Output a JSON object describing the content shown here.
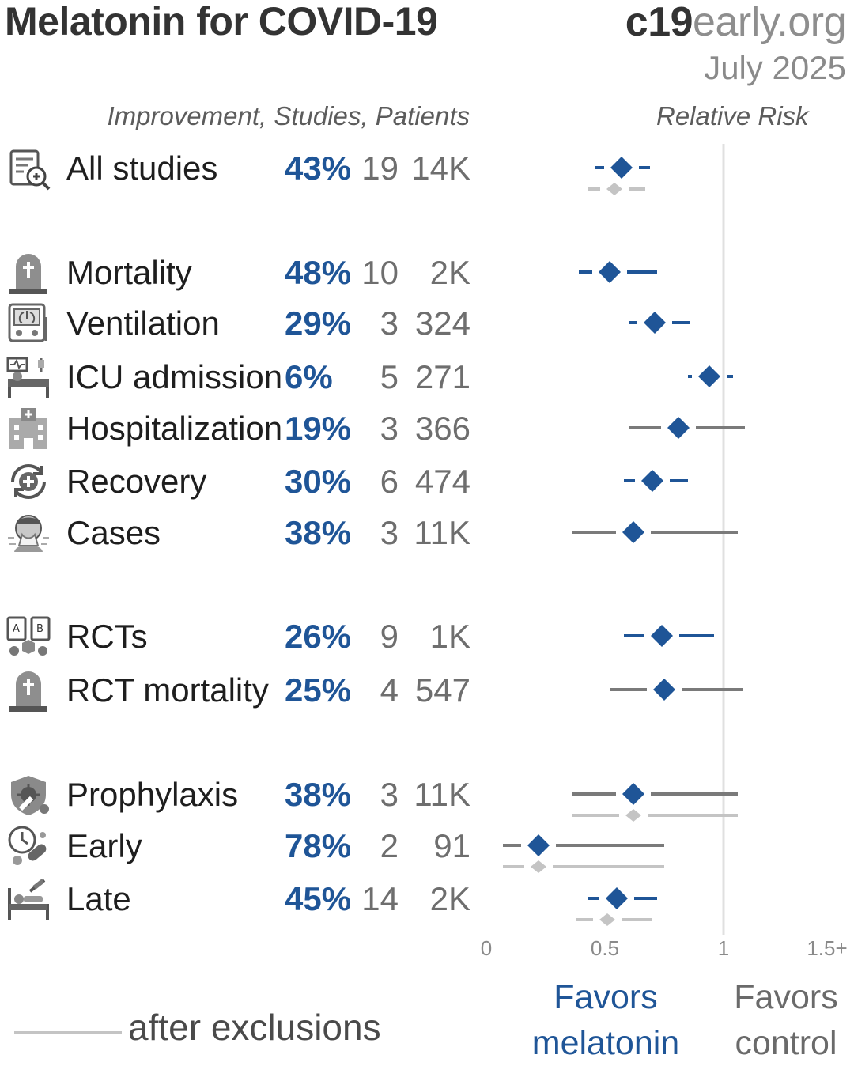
{
  "header": {
    "title": "Melatonin for COVID-19",
    "brand_main": "c19",
    "brand_light": "early.org",
    "date": "July 2025",
    "col_left": "Improvement, Studies, Patients",
    "col_right": "Relative Risk"
  },
  "rows": [
    {
      "label": "All studies",
      "improvement": "43%",
      "studies": "19",
      "patients": "14K",
      "icon": "study-magnifier-icon"
    },
    {
      "label": "Mortality",
      "improvement": "48%",
      "studies": "10",
      "patients": "2K",
      "icon": "gravestone-icon"
    },
    {
      "label": "Ventilation",
      "improvement": "29%",
      "studies": "3",
      "patients": "324",
      "icon": "ventilator-icon"
    },
    {
      "label": "ICU admission",
      "improvement": "6%",
      "studies": "5",
      "patients": "271",
      "icon": "icu-bed-icon"
    },
    {
      "label": "Hospitalization",
      "improvement": "19%",
      "studies": "3",
      "patients": "366",
      "icon": "hospital-icon"
    },
    {
      "label": "Recovery",
      "improvement": "30%",
      "studies": "6",
      "patients": "474",
      "icon": "recovery-cross-icon"
    },
    {
      "label": "Cases",
      "improvement": "38%",
      "studies": "3",
      "patients": "11K",
      "icon": "sneezing-person-icon"
    },
    {
      "label": "RCTs",
      "improvement": "26%",
      "studies": "9",
      "patients": "1K",
      "icon": "randomized-trial-icon"
    },
    {
      "label": "RCT mortality",
      "improvement": "25%",
      "studies": "4",
      "patients": "547",
      "icon": "gravestone-icon"
    },
    {
      "label": "Prophylaxis",
      "improvement": "38%",
      "studies": "3",
      "patients": "11K",
      "icon": "shield-virus-icon"
    },
    {
      "label": "Early",
      "improvement": "78%",
      "studies": "2",
      "patients": "91",
      "icon": "clock-pill-icon"
    },
    {
      "label": "Late",
      "improvement": "45%",
      "studies": "14",
      "patients": "2K",
      "icon": "hospital-bed-syringe-icon"
    }
  ],
  "chart_data": {
    "type": "forest",
    "title": "Melatonin for COVID-19",
    "xlabel": "Relative Risk",
    "xlim": [
      0,
      1.5
    ],
    "xticks": [
      "0",
      "0.5",
      "1",
      "1.5+"
    ],
    "reference_line": 1,
    "favors_treatment": "Favors melatonin",
    "favors_control": "Favors control",
    "legend": "after exclusions",
    "series": [
      {
        "name": "all studies",
        "points": [
          {
            "label": "All studies",
            "rr": 0.57,
            "ci": [
              0.46,
              0.69
            ]
          },
          {
            "label": "Mortality",
            "rr": 0.52,
            "ci": [
              0.39,
              0.72
            ]
          },
          {
            "label": "Ventilation",
            "rr": 0.71,
            "ci": [
              0.6,
              0.86
            ]
          },
          {
            "label": "ICU admission",
            "rr": 0.94,
            "ci": [
              0.85,
              1.04
            ]
          },
          {
            "label": "Hospitalization",
            "rr": 0.81,
            "ci": [
              0.6,
              1.09
            ]
          },
          {
            "label": "Recovery",
            "rr": 0.7,
            "ci": [
              0.58,
              0.85
            ]
          },
          {
            "label": "Cases",
            "rr": 0.62,
            "ci": [
              0.36,
              1.06
            ]
          },
          {
            "label": "RCTs",
            "rr": 0.74,
            "ci": [
              0.58,
              0.96
            ]
          },
          {
            "label": "RCT mortality",
            "rr": 0.75,
            "ci": [
              0.52,
              1.08
            ]
          },
          {
            "label": "Prophylaxis",
            "rr": 0.62,
            "ci": [
              0.36,
              1.06
            ]
          },
          {
            "label": "Early",
            "rr": 0.22,
            "ci": [
              0.07,
              0.75
            ]
          },
          {
            "label": "Late",
            "rr": 0.55,
            "ci": [
              0.43,
              0.72
            ]
          }
        ]
      },
      {
        "name": "after exclusions",
        "points": [
          {
            "label": "All studies",
            "rr": 0.54,
            "ci": [
              0.43,
              0.67
            ]
          },
          {
            "label": "Prophylaxis",
            "rr": 0.62,
            "ci": [
              0.36,
              1.06
            ]
          },
          {
            "label": "Early",
            "rr": 0.22,
            "ci": [
              0.07,
              0.75
            ]
          },
          {
            "label": "Late",
            "rr": 0.51,
            "ci": [
              0.38,
              0.7
            ]
          }
        ]
      }
    ]
  },
  "colors": {
    "accent": "#1f5597",
    "ci_gray": "#7a7a7a",
    "exclusion_gray": "#c4c4c4",
    "reference": "#e0e0e0"
  }
}
